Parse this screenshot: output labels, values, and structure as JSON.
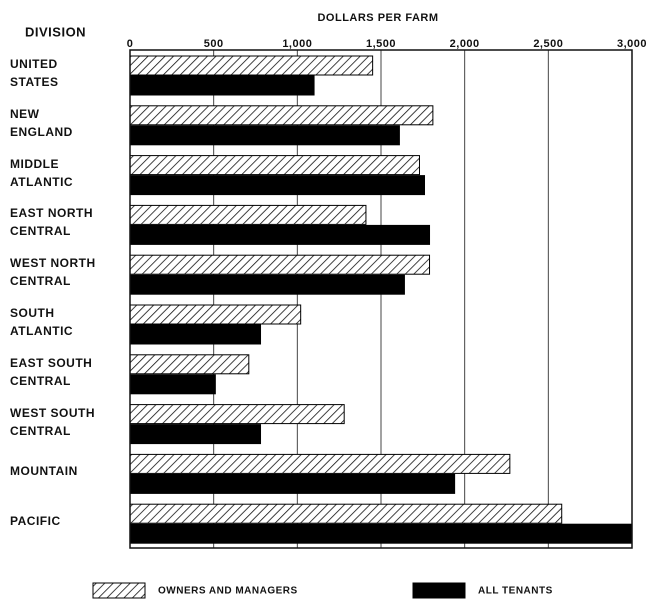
{
  "chart_data": {
    "type": "barh",
    "title": "DOLLARS PER FARM",
    "category_axis_label": "DIVISION",
    "categories": [
      "UNITED\nSTATES",
      "NEW\nENGLAND",
      "MIDDLE\nATLANTIC",
      "EAST NORTH\nCENTRAL",
      "WEST NORTH\nCENTRAL",
      "SOUTH\nATLANTIC",
      "EAST SOUTH\nCENTRAL",
      "WEST SOUTH\nCENTRAL",
      "MOUNTAIN",
      "PACIFIC"
    ],
    "series": [
      {
        "name": "OWNERS AND MANAGERS",
        "color": "#000000",
        "hatch": true,
        "values": [
          1450,
          1810,
          1730,
          1410,
          1790,
          1020,
          710,
          1280,
          2270,
          2580
        ]
      },
      {
        "name": "ALL TENANTS",
        "color": "#000000",
        "hatch": false,
        "values": [
          1100,
          1610,
          1760,
          1790,
          1640,
          780,
          510,
          780,
          1940,
          3000
        ]
      }
    ],
    "xlim": [
      0,
      3000
    ],
    "xticks": [
      0,
      500,
      {
        "value": 1000,
        "label": "1,000"
      },
      {
        "value": 1500,
        "label": "1,500"
      },
      {
        "value": 2000,
        "label": "2,000"
      },
      {
        "value": 2500,
        "label": "2,500"
      },
      {
        "value": 3000,
        "label": "3,000"
      }
    ],
    "grid": true
  }
}
